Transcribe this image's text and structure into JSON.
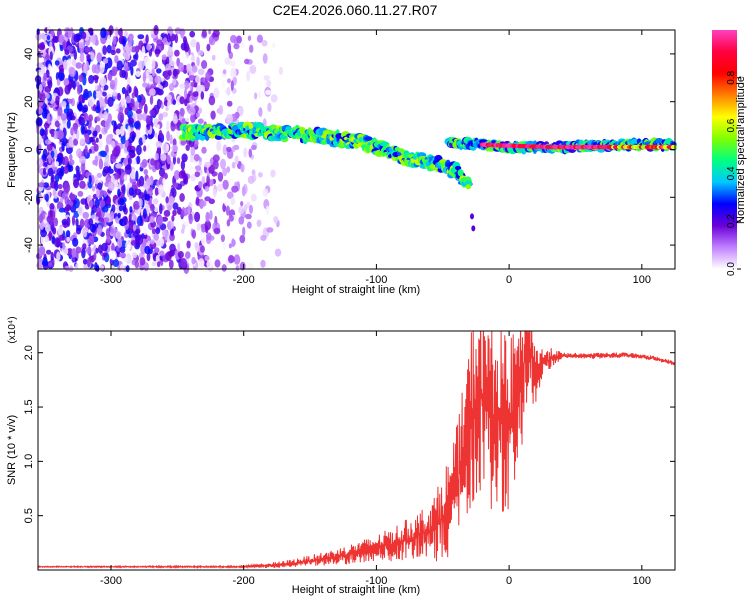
{
  "title": "C2E4.2026.060.11.27.R07",
  "chart_data": [
    {
      "type": "heatmap",
      "name": "spectrogram",
      "title": "C2E4.2026.060.11.27.R07",
      "xlabel": "Height of straight line (km)",
      "ylabel": "Frequency (Hz)",
      "xlim": [
        -355,
        125
      ],
      "ylim": [
        -50,
        50
      ],
      "x_ticks": [
        -300,
        -200,
        -100,
        0,
        100
      ],
      "x_tick_labels": [
        "-300",
        "-200",
        "-100",
        "0",
        "100"
      ],
      "y_ticks": [
        -40,
        -20,
        0,
        20,
        40
      ],
      "y_tick_labels": [
        "-40",
        "-20",
        "0",
        "20",
        "40"
      ],
      "colorbar": {
        "label": "Normalized spectral amplitude",
        "range": [
          0,
          1
        ],
        "ticks": [
          0.0,
          0.2,
          0.4,
          0.6,
          0.8
        ],
        "tick_labels": [
          "0.0",
          "0.2",
          "0.4",
          "0.6",
          "0.8"
        ],
        "colors": [
          "#ffffff",
          "#c080ff",
          "#6a00d8",
          "#0000ff",
          "#00c8ff",
          "#00ff80",
          "#80ff00",
          "#ffff00",
          "#ff8000",
          "#ff0000",
          "#ff0040",
          "#ff40c0"
        ]
      },
      "signal_track": [
        {
          "x": -245,
          "y": 7
        },
        {
          "x": -200,
          "y": 8
        },
        {
          "x": -150,
          "y": 6
        },
        {
          "x": -110,
          "y": 3
        },
        {
          "x": -80,
          "y": -3
        },
        {
          "x": -55,
          "y": -6
        },
        {
          "x": -40,
          "y": -9
        },
        {
          "x": -30,
          "y": -16
        }
      ],
      "signal_track_2": [
        {
          "x": -45,
          "y": 3
        },
        {
          "x": -20,
          "y": 2
        },
        {
          "x": 0,
          "y": 1
        },
        {
          "x": 40,
          "y": 1
        },
        {
          "x": 90,
          "y": 2
        },
        {
          "x": 125,
          "y": 2
        }
      ],
      "strong_band": [
        {
          "x": -20,
          "y": 2
        },
        {
          "x": 30,
          "y": 1
        },
        {
          "x": 70,
          "y": 1
        }
      ],
      "tail_points": [
        {
          "x": -28,
          "y": -28
        },
        {
          "x": -27,
          "y": -33
        }
      ],
      "noise_region": {
        "x_from": -355,
        "x_to": -170,
        "y_from": -50,
        "y_to": 50
      }
    },
    {
      "type": "line",
      "name": "snr",
      "xlabel": "Height of straight line (km)",
      "ylabel": "SNR (10 * v/v)",
      "scale_label": "(x10⁴)",
      "xlim": [
        -355,
        125
      ],
      "ylim": [
        0,
        2.2
      ],
      "x_ticks": [
        -300,
        -200,
        -100,
        0,
        100
      ],
      "x_tick_labels": [
        "-300",
        "-200",
        "-100",
        "0",
        "100"
      ],
      "y_ticks": [
        0.5,
        1.0,
        1.5,
        2.0
      ],
      "y_tick_labels": [
        "0.5",
        "1.0",
        "1.5",
        "2.0"
      ],
      "color": "#ee3333",
      "envelope": [
        {
          "x": -355,
          "y": 0.03
        },
        {
          "x": -200,
          "y": 0.03
        },
        {
          "x": -170,
          "y": 0.05
        },
        {
          "x": -130,
          "y": 0.12
        },
        {
          "x": -100,
          "y": 0.2
        },
        {
          "x": -75,
          "y": 0.28
        },
        {
          "x": -55,
          "y": 0.4
        },
        {
          "x": -42,
          "y": 0.65
        },
        {
          "x": -35,
          "y": 1.0
        },
        {
          "x": -28,
          "y": 1.45
        },
        {
          "x": -22,
          "y": 1.6
        },
        {
          "x": -10,
          "y": 1.4
        },
        {
          "x": 0,
          "y": 1.3
        },
        {
          "x": 10,
          "y": 1.8
        },
        {
          "x": 14,
          "y": 2.15
        },
        {
          "x": 20,
          "y": 1.8
        },
        {
          "x": 25,
          "y": 1.9
        },
        {
          "x": 35,
          "y": 1.97
        },
        {
          "x": 60,
          "y": 1.97
        },
        {
          "x": 90,
          "y": 1.98
        },
        {
          "x": 110,
          "y": 1.95
        },
        {
          "x": 125,
          "y": 1.9
        }
      ],
      "noise_amplitude": [
        {
          "x": -355,
          "y": 0.005
        },
        {
          "x": -200,
          "y": 0.008
        },
        {
          "x": -150,
          "y": 0.05
        },
        {
          "x": -100,
          "y": 0.12
        },
        {
          "x": -60,
          "y": 0.25
        },
        {
          "x": -40,
          "y": 0.55
        },
        {
          "x": -25,
          "y": 0.9
        },
        {
          "x": -10,
          "y": 0.9
        },
        {
          "x": 0,
          "y": 0.8
        },
        {
          "x": 12,
          "y": 0.6
        },
        {
          "x": 25,
          "y": 0.15
        },
        {
          "x": 40,
          "y": 0.03
        },
        {
          "x": 125,
          "y": 0.02
        }
      ]
    }
  ]
}
